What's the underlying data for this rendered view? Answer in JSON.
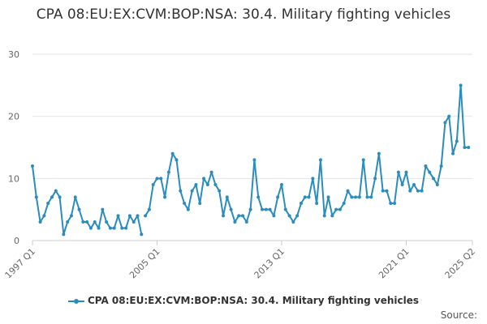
{
  "chart_data": {
    "type": "line",
    "title": "CPA 08:EU:EX:CVM:BOP:NSA: 30.4. Military fighting vehicles",
    "xlabel": "",
    "ylabel": "",
    "ylim": [
      0,
      30
    ],
    "yticks": [
      0,
      10,
      20,
      30
    ],
    "xticks": [
      "1997 Q1",
      "2005 Q1",
      "2013 Q1",
      "2021 Q1",
      "2025 Q2"
    ],
    "grid": "horizontal",
    "legend_position": "bottom",
    "series": [
      {
        "name": "CPA 08:EU:EX:CVM:BOP:NSA: 30.4. Military fighting vehicles",
        "color": "#2b8cbe",
        "segments": [
          {
            "start": "1997 Q1",
            "values": [
              12,
              7,
              3,
              4,
              6,
              7,
              8,
              7,
              1,
              3,
              4,
              7,
              5,
              3,
              3,
              2,
              3,
              2,
              5,
              3,
              2,
              2,
              4,
              2,
              2,
              4,
              3,
              4,
              1
            ]
          },
          {
            "start": "2004 Q2",
            "values": [
              4,
              5,
              9,
              10,
              10,
              7,
              11,
              14,
              13,
              8,
              6,
              5,
              8,
              9,
              6,
              10,
              9,
              11,
              9,
              8,
              4,
              7,
              5,
              3,
              4,
              4,
              3,
              5,
              13,
              7,
              5,
              5,
              5,
              4,
              7,
              9,
              5,
              4,
              3,
              4,
              6,
              7,
              7,
              10,
              6,
              13,
              4,
              7,
              4,
              5,
              5,
              6,
              8,
              7,
              7,
              7,
              13,
              7,
              7,
              10,
              14,
              8,
              8,
              6,
              6,
              11,
              9,
              11,
              8,
              9,
              8,
              8,
              12,
              11,
              10,
              9,
              12,
              19,
              20,
              14,
              16,
              25,
              15,
              15
            ]
          }
        ]
      }
    ]
  },
  "source_label": "Source:"
}
